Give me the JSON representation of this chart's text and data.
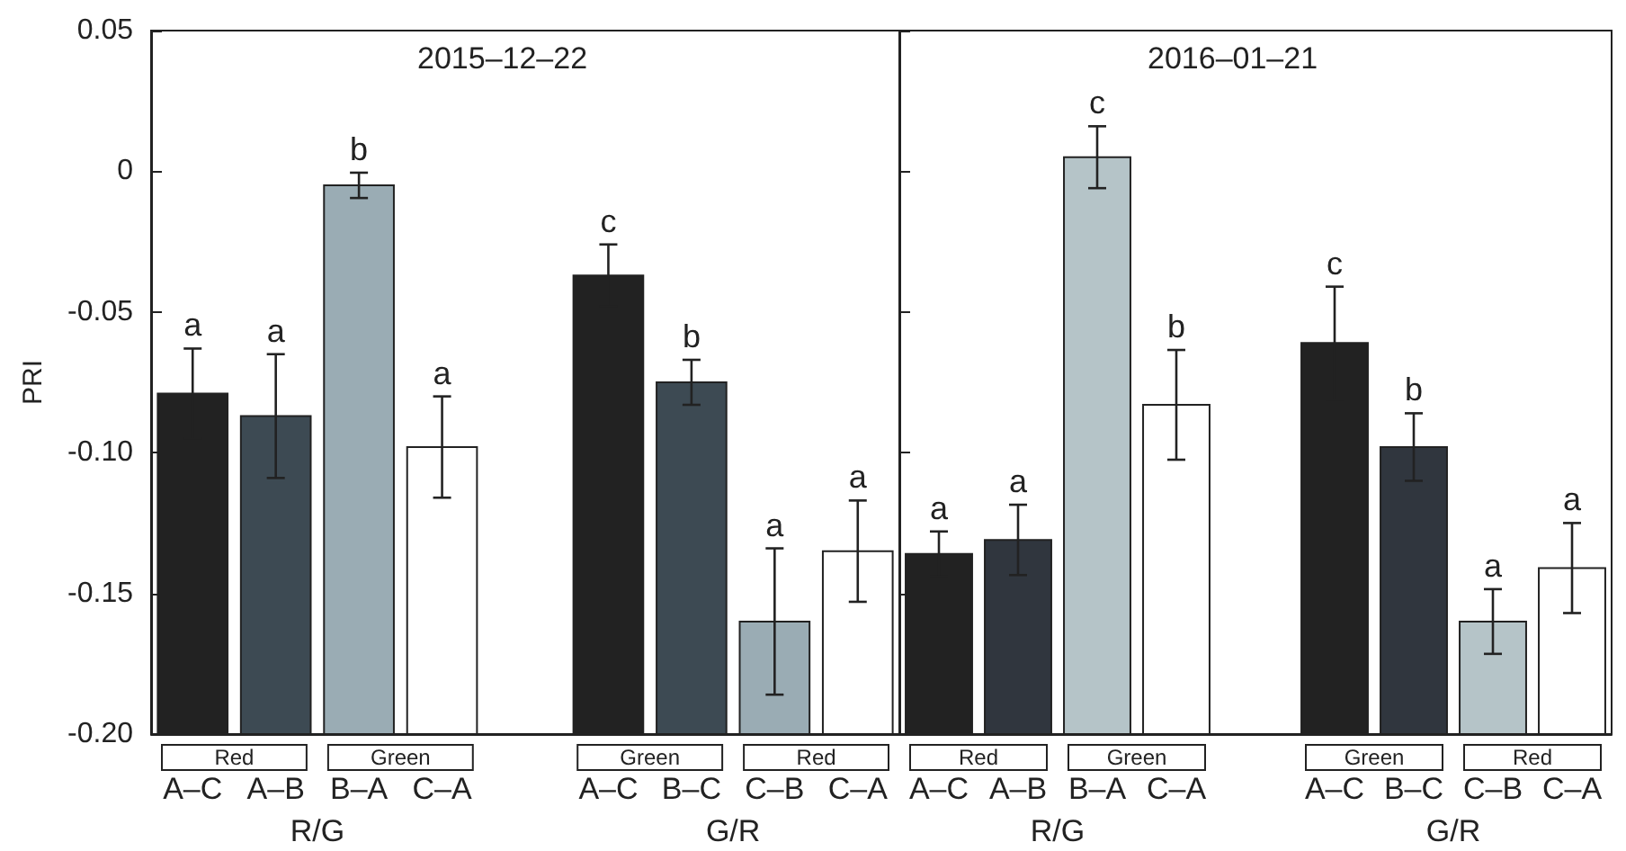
{
  "chart_data": [
    {
      "type": "bar",
      "title": "2015–12–22",
      "ylabel": "PRI",
      "categories": [
        "A–C",
        "A–B",
        "B–A",
        "C–A",
        "A–C",
        "B–C",
        "C–B",
        "C–A"
      ],
      "base": [
        -0.2,
        -0.2,
        -0.2,
        -0.2,
        -0.2,
        -0.2,
        -0.2,
        -0.2
      ],
      "values": [
        0.121,
        0.113,
        0.195,
        0.102,
        0.163,
        0.125,
        0.04,
        0.065
      ],
      "errors": [
        0.016,
        0.022,
        0.0045,
        0.018,
        0.011,
        0.008,
        0.026,
        0.018
      ],
      "colors": [
        "#222222",
        "#3d4a53",
        "#9aacb4",
        "#ffffff",
        "#222222",
        "#3d4a53",
        "#9aacb4",
        "#ffffff"
      ],
      "value_labels": [
        "a",
        "a",
        "b",
        "a",
        "c",
        "b",
        "a",
        "a"
      ],
      "annotations": [
        "Red",
        "Green",
        "R/G",
        "Green",
        "Red",
        "G/R"
      ],
      "ylim": [
        -0.2,
        0.05
      ],
      "yticks": [
        {
          "value": -0.2,
          "label": "-0.20"
        },
        {
          "value": -0.15,
          "label": "-0.15"
        },
        {
          "value": -0.1,
          "label": "-0.10"
        },
        {
          "value": -0.05,
          "label": "-0.05"
        },
        0,
        0.05
      ],
      "grid": false,
      "legend": false
    },
    {
      "type": "bar",
      "title": "2016–01–21",
      "categories": [
        "A–C",
        "A–B",
        "B–A",
        "C–A",
        "A–C",
        "B–C",
        "C–B",
        "C–A"
      ],
      "base": [
        -0.2,
        -0.2,
        -0.2,
        -0.2,
        -0.2,
        -0.2,
        -0.2,
        -0.2
      ],
      "values": [
        0.064,
        0.069,
        0.205,
        0.117,
        0.139,
        0.102,
        0.04,
        0.059
      ],
      "errors": [
        0.008,
        0.0125,
        0.011,
        0.0195,
        0.02,
        0.012,
        0.0115,
        0.016
      ],
      "colors": [
        "#222222",
        "#30363e",
        "#b5c4c8",
        "#ffffff",
        "#222222",
        "#30363e",
        "#b5c4c8",
        "#ffffff"
      ],
      "value_labels": [
        "a",
        "a",
        "c",
        "b",
        "c",
        "b",
        "a",
        "a"
      ],
      "annotations": [
        "Red",
        "Green",
        "R/G",
        "Green",
        "Red",
        "G/R"
      ],
      "ylim": [
        -0.2,
        0.05
      ],
      "yticks": [
        -0.2,
        -0.15,
        -0.1,
        -0.05,
        0,
        0.05
      ],
      "tick_labels": "x",
      "grid": false,
      "legend": false
    }
  ]
}
